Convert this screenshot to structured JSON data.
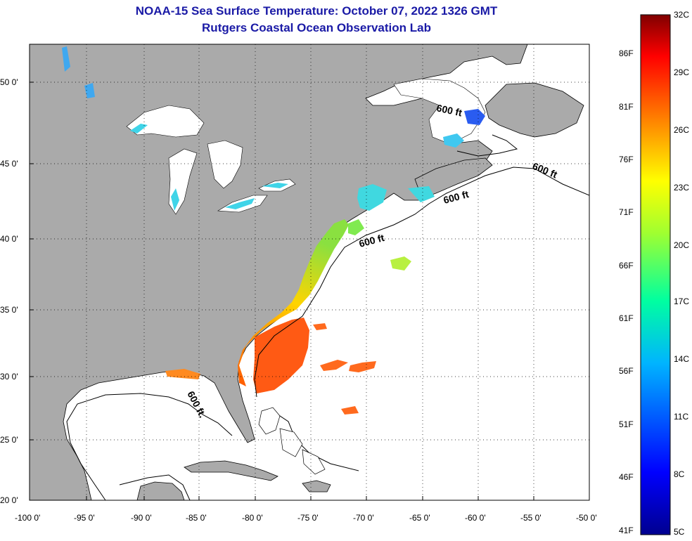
{
  "header": {
    "title": "NOAA-15 Sea Surface Temperature:  October 07, 2022 1326 GMT",
    "subtitle": "Rutgers Coastal Ocean Observation Lab"
  },
  "map": {
    "lat_labels": [
      "50 0'",
      "45 0'",
      "40 0'",
      "35 0'",
      "30 0'",
      "25 0'",
      "20 0'"
    ],
    "lon_labels": [
      "-100 0'",
      "-95 0'",
      "-90 0'",
      "-85 0'",
      "-80 0'",
      "-75 0'",
      "-70 0'",
      "-65 0'",
      "-60 0'",
      "-55 0'",
      "-50 0'"
    ],
    "isobath_label": "600 ft",
    "isobath_label_alt": "600 ft.",
    "land_color": "#aaaaaa",
    "ocean_color": "#ffffff"
  },
  "colorbar": {
    "celsius": [
      "32C",
      "29C",
      "26C",
      "23C",
      "20C",
      "17C",
      "14C",
      "11C",
      "8C",
      "5C"
    ],
    "fahrenheit": [
      "86F",
      "81F",
      "76F",
      "71F",
      "66F",
      "61F",
      "56F",
      "51F",
      "46F",
      "41F"
    ]
  }
}
